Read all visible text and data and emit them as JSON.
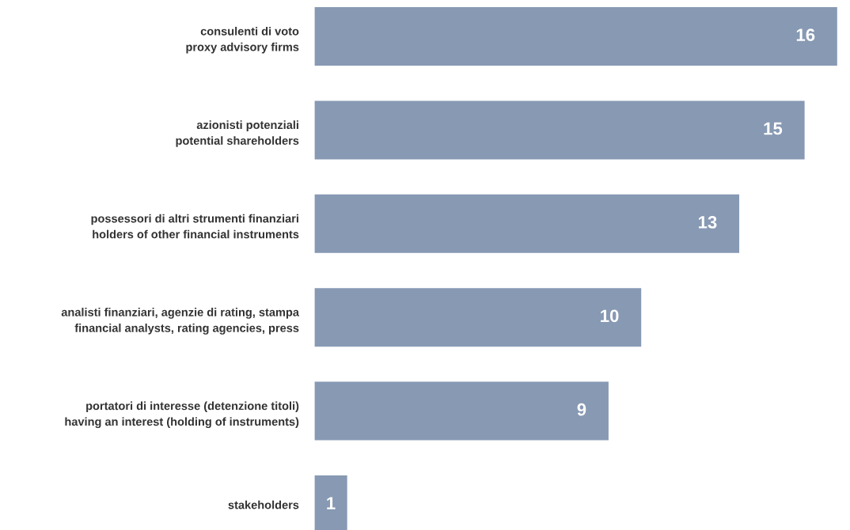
{
  "chart_data": {
    "type": "bar",
    "orientation": "horizontal",
    "categories": [
      "consulenti di voto\nproxy advisory firms",
      "azionisti potenziali\npotential shareholders",
      "possessori di altri strumenti finanziari\nholders of other financial instruments",
      "analisti finanziari, agenzie di rating, stampa\nfinancial analysts, rating agencies, press",
      "portatori di interesse (detenzione titoli)\nhaving an interest (holding of instruments)",
      "stakeholders"
    ],
    "values": [
      16,
      15,
      13,
      10,
      9,
      1
    ],
    "color": "#8799b3",
    "data_labels": true,
    "tick_labels": "y",
    "grid": false
  }
}
